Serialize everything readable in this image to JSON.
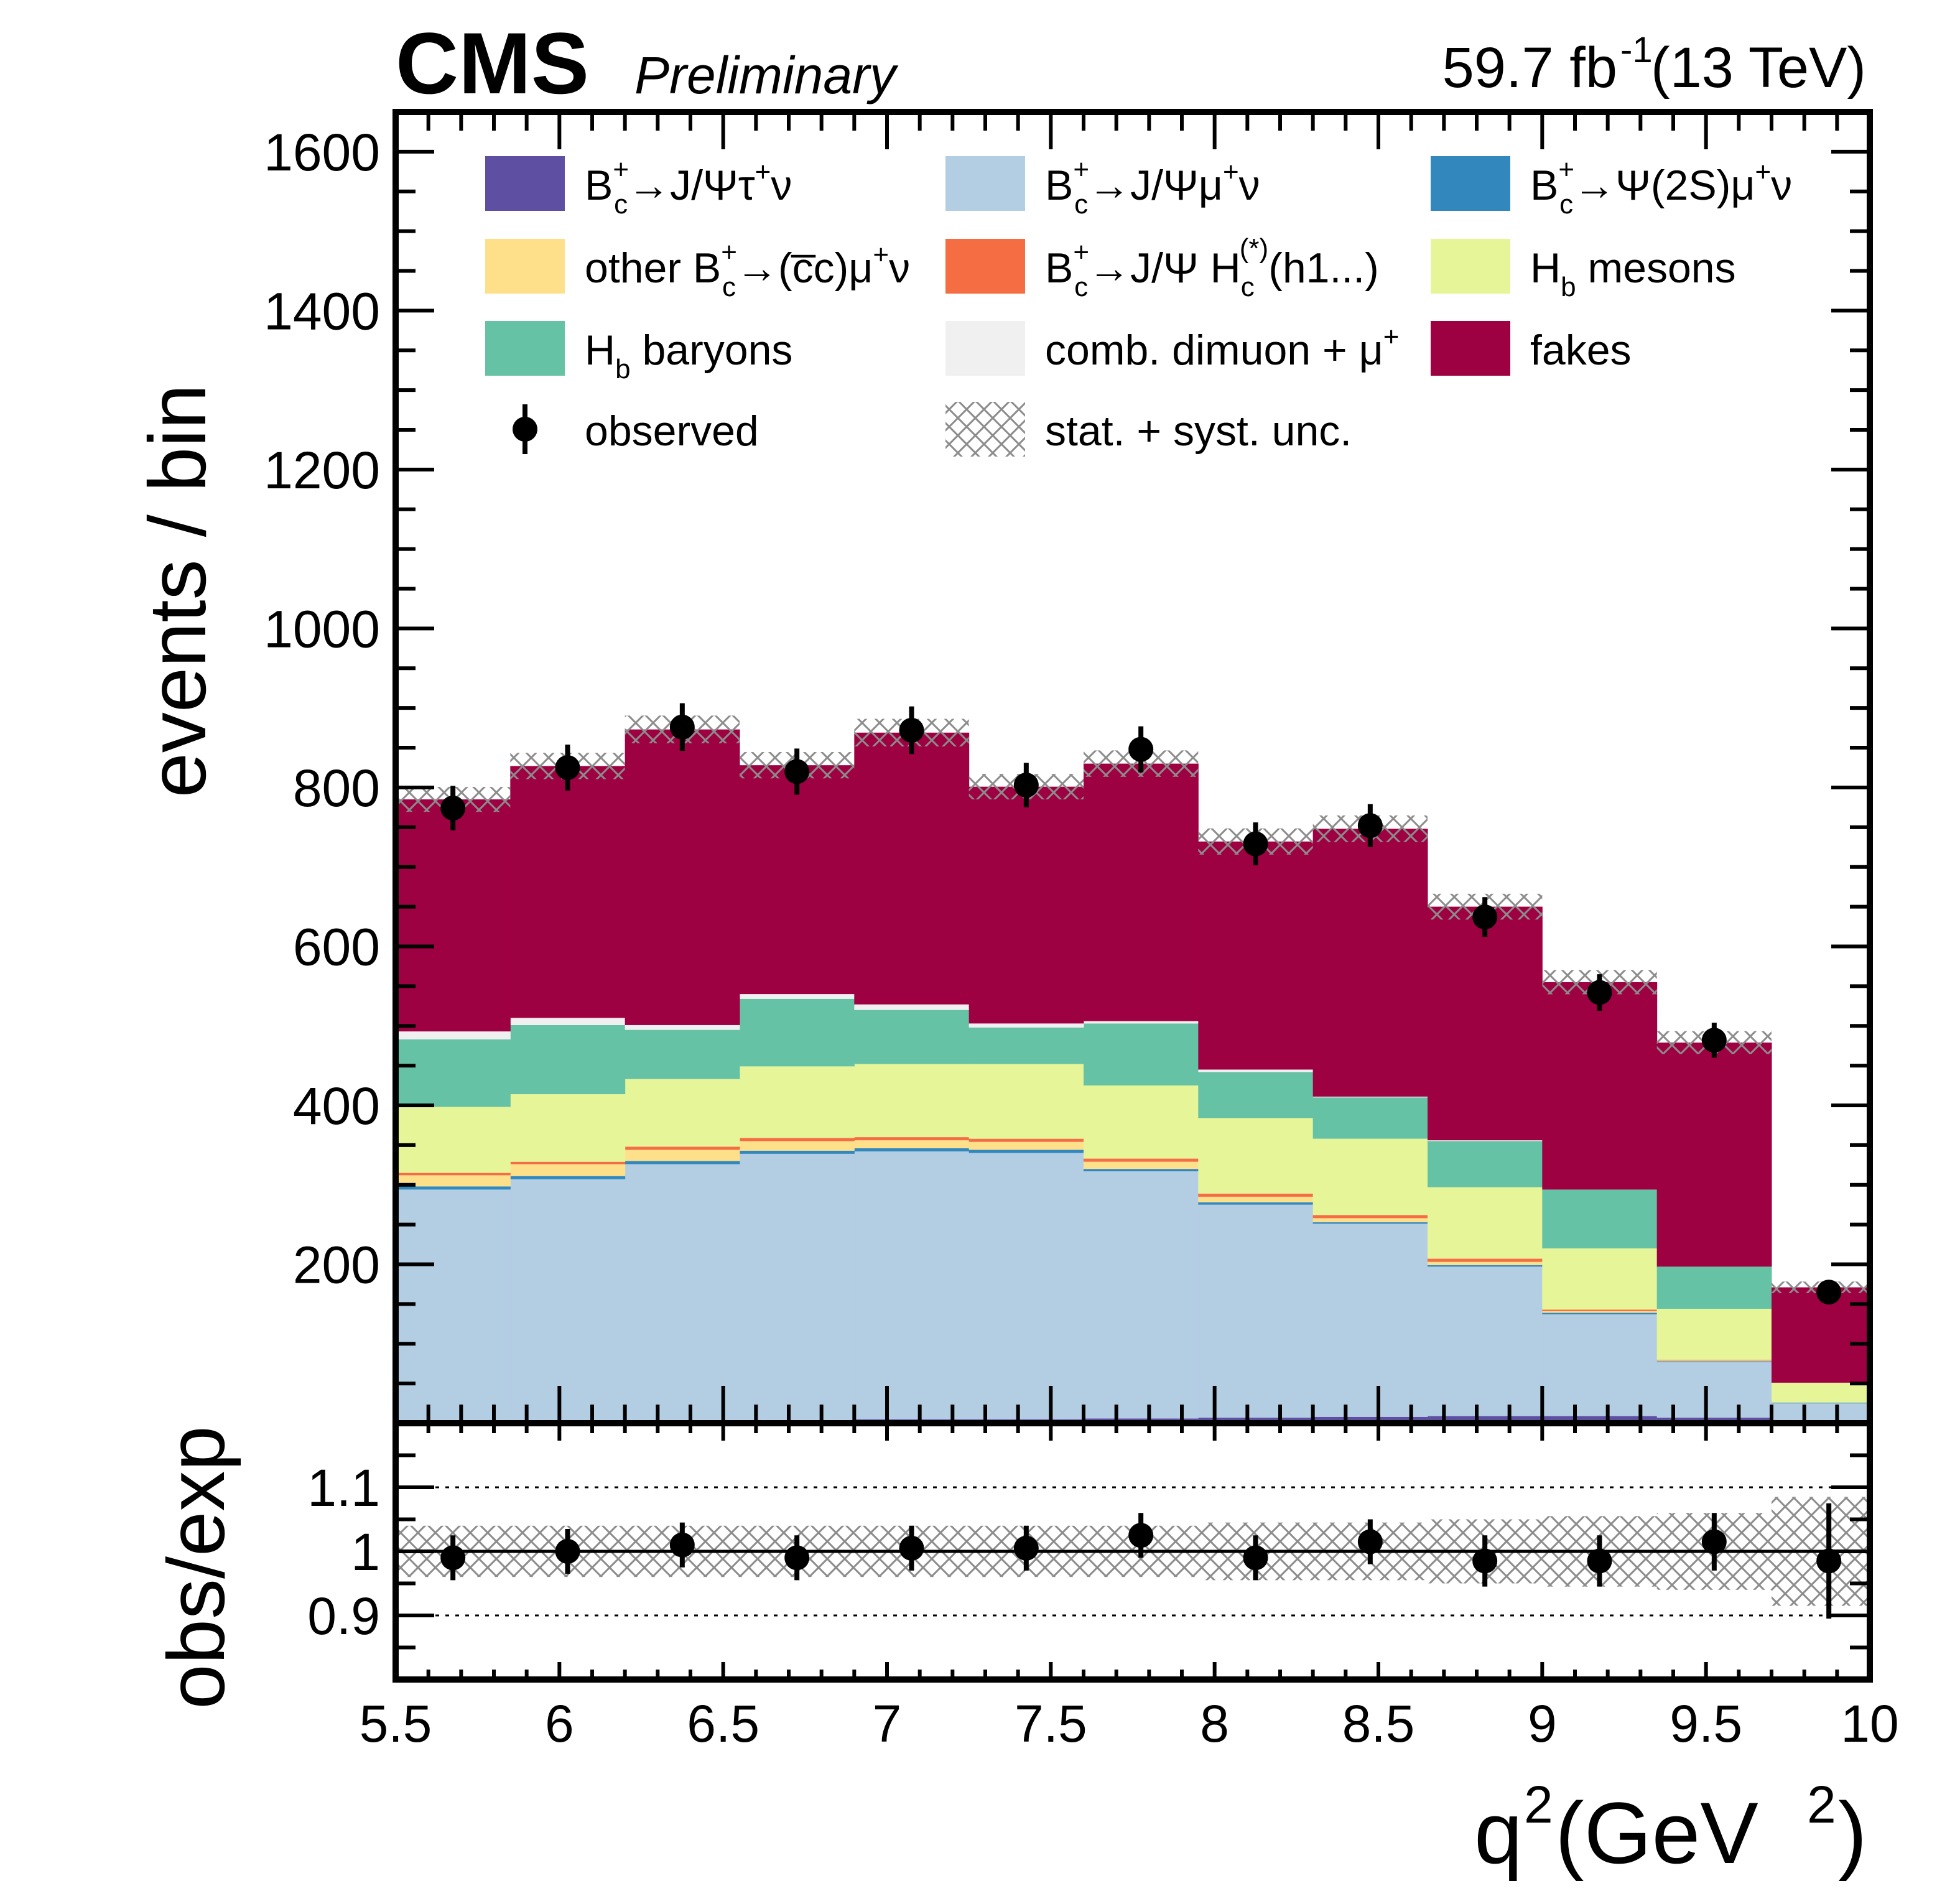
{
  "header": {
    "experiment": "CMS",
    "status": "Preliminary",
    "lumi_value": "59.7 fb",
    "lumi_exp": "-1",
    "energy": "(13 TeV)"
  },
  "main_axes": {
    "ylabel": "events / bin",
    "yticks": [
      "200",
      "400",
      "600",
      "800",
      "1000",
      "1200",
      "1400",
      "1600"
    ]
  },
  "ratio_axes": {
    "ylabel": "obs/exp",
    "yticks": [
      "0.9",
      "1",
      "1.1"
    ]
  },
  "x_axis": {
    "label_q": "q",
    "label_sup1": "2",
    "label_mid": " (GeV",
    "label_sup2": "2",
    "label_end": ")",
    "ticks": [
      "5.5",
      "6",
      "6.5",
      "7",
      "7.5",
      "8",
      "8.5",
      "9",
      "9.5",
      "10"
    ]
  },
  "legend": {
    "placement": "top, 3 columns",
    "entries": [
      {
        "text": "B",
        "sub": "c",
        "sup": "+",
        "rest": "→J/Ψτ",
        "sup2": "+",
        "end": "ν",
        "color": "#5e4fa2"
      },
      {
        "text": "B",
        "sub": "c",
        "sup": "+",
        "rest": "→J/Ψμ",
        "sup2": "+",
        "end": "ν",
        "color": "#b3cde3"
      },
      {
        "text": "B",
        "sub": "c",
        "sup": "+",
        "rest": "→Ψ(2S)μ",
        "sup2": "+",
        "end": "ν",
        "color": "#3288bd"
      },
      {
        "text": "other B",
        "sub": "c",
        "sup": "+",
        "rest": "→(c̅c)μ",
        "sup2": "+",
        "end": "ν",
        "color": "#fee08b"
      },
      {
        "text": "B",
        "sub": "c",
        "sup": "+",
        "rest": "→J/Ψ H",
        "sub2": "c",
        "sup2": "(*)",
        "end": "(h1...)",
        "color": "#f46d43"
      },
      {
        "text": "H",
        "sub": "b",
        "rest": " mesons",
        "color": "#e6f598"
      },
      {
        "text": "H",
        "sub": "b",
        "rest": " baryons",
        "color": "#66c2a5"
      },
      {
        "text": "comb. dimuon + μ",
        "sup": "+",
        "color": "#f0f0f0"
      },
      {
        "text": "fakes",
        "color": "#9e0142"
      },
      {
        "text": "observed",
        "kind": "marker"
      },
      {
        "text": "stat. + syst. unc.",
        "kind": "hatch"
      }
    ]
  },
  "chart_data": {
    "type": "bar",
    "stacked": true,
    "bin_edges": [
      5.5,
      5.85,
      6.2,
      6.55,
      6.9,
      7.25,
      7.6,
      7.95,
      8.3,
      8.65,
      9.0,
      9.35,
      9.7,
      10.05
    ],
    "x_range": [
      5.5,
      10
    ],
    "ylim": [
      0,
      1650
    ],
    "ratio_ylim": [
      0.8,
      1.2
    ],
    "ratio_reference_lines": [
      0.9,
      1.0,
      1.1
    ],
    "series": [
      {
        "name": "Bc+→J/Ψτ+ν",
        "color": "#5e4fa2",
        "values": [
          4,
          4,
          4,
          4,
          5,
          5,
          6,
          7,
          8,
          9,
          9,
          7,
          3
        ]
      },
      {
        "name": "Bc+→J/Ψμ+ν",
        "color": "#b3cde3",
        "values": [
          290,
          303,
          322,
          335,
          337,
          335,
          311,
          268,
          243,
          188,
          128,
          70,
          22
        ]
      },
      {
        "name": "Bc+→Ψ(2S)μ+ν",
        "color": "#3288bd",
        "values": [
          4,
          4,
          4,
          4,
          4,
          4,
          3,
          3,
          2,
          2,
          2,
          1,
          1
        ]
      },
      {
        "name": "other Bc+→(c̅c)μ+ν",
        "color": "#fee08b",
        "values": [
          14,
          15,
          14,
          12,
          10,
          10,
          9,
          7,
          5,
          4,
          2,
          1,
          0
        ]
      },
      {
        "name": "Bc+→J/Ψ Hc(*)(h1...)",
        "color": "#f46d43",
        "values": [
          3,
          3,
          4,
          4,
          4,
          4,
          4,
          4,
          4,
          4,
          2,
          1,
          0
        ]
      },
      {
        "name": "Hb mesons",
        "color": "#e6f598",
        "values": [
          83,
          85,
          85,
          90,
          92,
          94,
          92,
          95,
          96,
          90,
          77,
          64,
          25
        ]
      },
      {
        "name": "Hb baryons",
        "color": "#66c2a5",
        "values": [
          85,
          87,
          62,
          85,
          68,
          46,
          78,
          58,
          52,
          58,
          74,
          53,
          0
        ]
      },
      {
        "name": "comb. dimuon + μ+",
        "color": "#f0f0f0",
        "values": [
          10,
          9,
          6,
          6,
          7,
          5,
          3,
          3,
          1,
          1,
          0,
          0,
          0
        ]
      },
      {
        "name": "fakes",
        "color": "#9e0142",
        "values": [
          292,
          317,
          372,
          288,
          342,
          298,
          324,
          287,
          337,
          294,
          261,
          282,
          120
        ]
      }
    ],
    "observed": {
      "name": "observed",
      "x": [
        5.675,
        6.025,
        6.375,
        6.725,
        7.075,
        7.425,
        7.775,
        8.125,
        8.475,
        8.825,
        9.175,
        9.525,
        9.875
      ],
      "y": [
        774,
        825,
        876,
        820,
        872,
        803,
        848,
        729,
        752,
        637,
        542,
        482,
        165
      ],
      "yerr": [
        28,
        29,
        30,
        29,
        30,
        28,
        29,
        27,
        27,
        25,
        23,
        22,
        13
      ]
    },
    "ratio": {
      "y": [
        0.99,
        1.0,
        1.01,
        0.99,
        1.005,
        1.005,
        1.025,
        0.99,
        1.015,
        0.985,
        0.985,
        1.015,
        0.985
      ],
      "yerr": [
        0.035,
        0.035,
        0.035,
        0.035,
        0.035,
        0.035,
        0.035,
        0.035,
        0.035,
        0.04,
        0.04,
        0.045,
        0.09
      ],
      "band": [
        0.04,
        0.04,
        0.04,
        0.04,
        0.04,
        0.04,
        0.04,
        0.045,
        0.045,
        0.05,
        0.055,
        0.06,
        0.085
      ]
    }
  }
}
